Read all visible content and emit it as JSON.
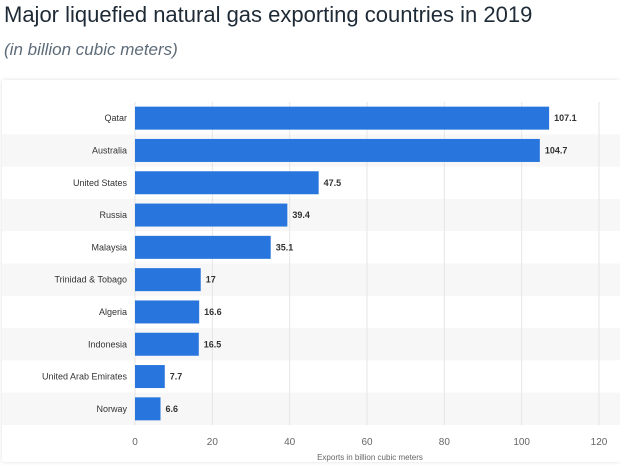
{
  "header": {
    "title": "Major liquefied natural gas exporting countries in 2019",
    "subtitle": "(in billion cubic meters)"
  },
  "colors": {
    "bar": "#2876dd",
    "label_text": "#333333",
    "tick_text": "#666666",
    "grid": "#e6e6e6",
    "band": "#f7f7f7"
  },
  "chart_data": {
    "type": "bar",
    "orientation": "horizontal",
    "categories": [
      "Qatar",
      "Australia",
      "United States",
      "Russia",
      "Malaysia",
      "Trinidad & Tobago",
      "Algeria",
      "Indonesia",
      "United Arab Emirates",
      "Norway"
    ],
    "values": [
      107.1,
      104.7,
      47.5,
      39.4,
      35.1,
      17,
      16.6,
      16.5,
      7.7,
      6.6
    ],
    "value_labels": [
      "107.1",
      "104.7",
      "47.5",
      "39.4",
      "35.1",
      "17",
      "16.6",
      "16.5",
      "7.7",
      "6.6"
    ],
    "title": "Major liquefied natural gas exporting countries in 2019",
    "subtitle": "(in billion cubic meters)",
    "xlabel": "Exports in billion cubic meters",
    "ylabel": "",
    "xlim": [
      0,
      120
    ],
    "x_ticks": [
      0,
      20,
      40,
      60,
      80,
      100,
      120
    ],
    "grid": true,
    "legend": "none"
  }
}
